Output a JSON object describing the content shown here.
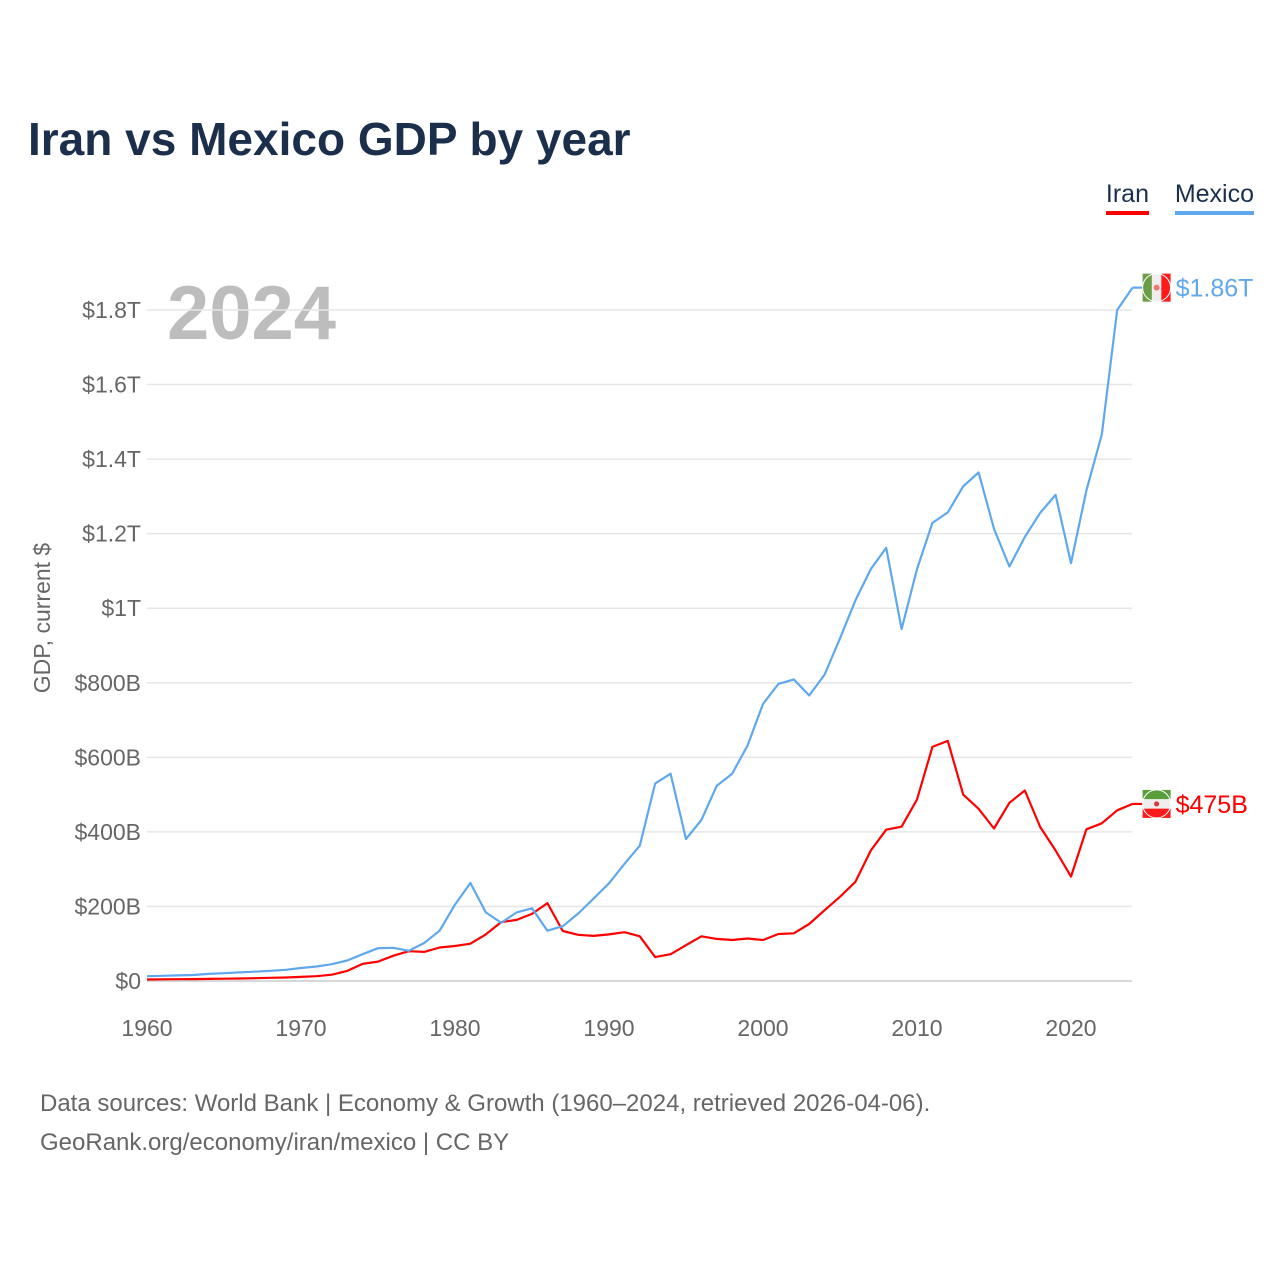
{
  "title": "Iran vs Mexico GDP by year",
  "year_watermark": "2024",
  "source_line1": "Data sources: World Bank | Economy & Growth (1960–2024, retrieved 2026-04-06).",
  "source_line2": "GeoRank.org/economy/iran/mexico | CC BY",
  "chart_data": {
    "type": "line",
    "title": "Iran vs Mexico GDP by year",
    "xlabel": "",
    "ylabel": "GDP, current $",
    "xlim": [
      1960,
      2024
    ],
    "ylim": [
      0,
      1900
    ],
    "units": "billions USD",
    "grid": true,
    "legend_placement": "top-right",
    "x_ticks": [
      "1960",
      "1970",
      "1980",
      "1990",
      "2000",
      "2010",
      "2020"
    ],
    "x_tick_values": [
      1960,
      1970,
      1980,
      1990,
      2000,
      2010,
      2020
    ],
    "y_ticks": [
      "$0",
      "$200B",
      "$400B",
      "$600B",
      "$800B",
      "$1T",
      "$1.2T",
      "$1.4T",
      "$1.6T",
      "$1.8T"
    ],
    "y_tick_values": [
      0,
      200,
      400,
      600,
      800,
      1000,
      1200,
      1400,
      1600,
      1800
    ],
    "start_year": 1960,
    "series": [
      {
        "name": "Iran",
        "color": "#ff0000",
        "end_label": "$475B",
        "flag": "iran-flag",
        "values": [
          4,
          4.5,
          4.7,
          5,
          5.5,
          6.2,
          6.8,
          7.5,
          8.5,
          9.5,
          11,
          13,
          17,
          27,
          46,
          52,
          68,
          80,
          78,
          90,
          94,
          100,
          125,
          158,
          164,
          180,
          209,
          134,
          124,
          121,
          125,
          131,
          120,
          64,
          72,
          96,
          120,
          113,
          110,
          114,
          110,
          126,
          128,
          153,
          190,
          226,
          266,
          350,
          406,
          414,
          487,
          628,
          644,
          500,
          462,
          409,
          478,
          511,
          413,
          350,
          280,
          407,
          423,
          458,
          475
        ]
      },
      {
        "name": "Mexico",
        "color": "#5fa8ee",
        "end_label": "$1.86T",
        "flag": "mexico-flag",
        "values": [
          13,
          14,
          15,
          16,
          19,
          21,
          23,
          25,
          27,
          30,
          35,
          39,
          45,
          55,
          72,
          88,
          89,
          81,
          102,
          135,
          205,
          263,
          184,
          156,
          184,
          195,
          135,
          147,
          181,
          221,
          262,
          314,
          363,
          530,
          556,
          381,
          432,
          524,
          556,
          632,
          743,
          797,
          809,
          766,
          822,
          919,
          1021,
          1105,
          1162,
          944,
          1105,
          1229,
          1257,
          1327,
          1364,
          1213,
          1112,
          1191,
          1256,
          1304,
          1121,
          1316,
          1466,
          1800,
          1860
        ]
      }
    ]
  }
}
